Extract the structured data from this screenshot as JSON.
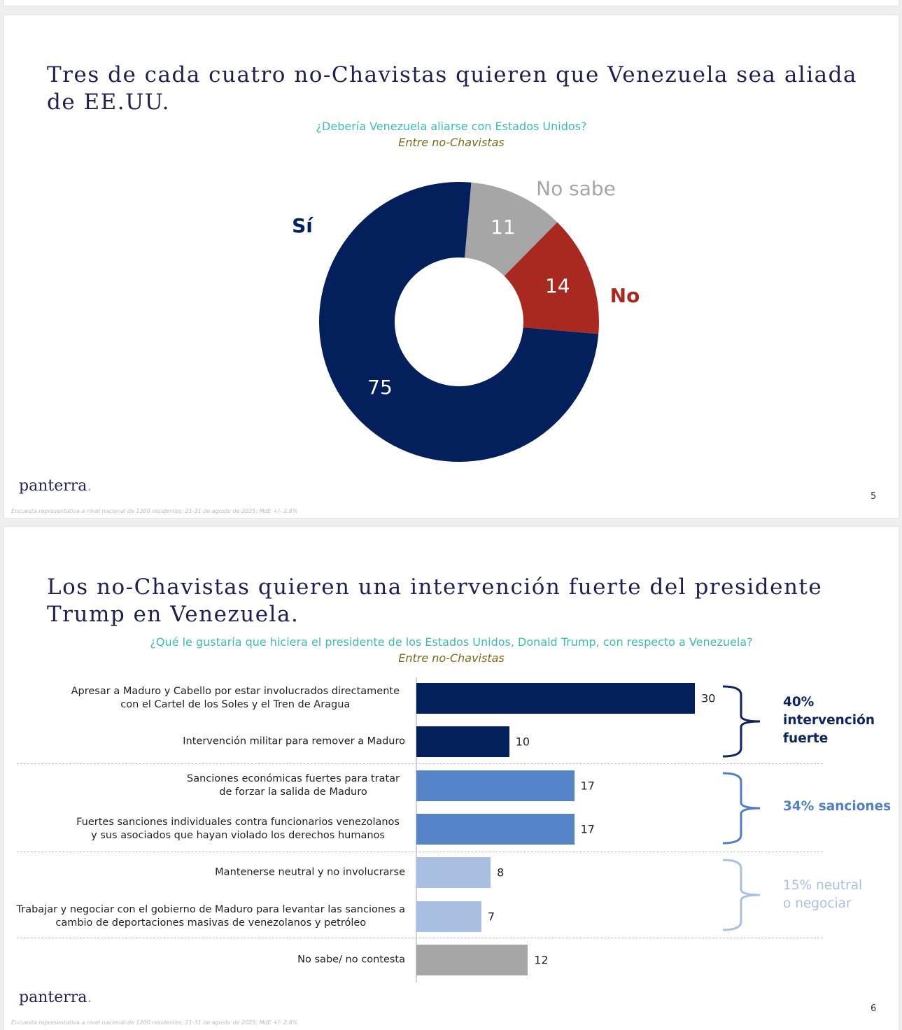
{
  "footer": "Encuesta representativa a nivel nacional de 1200 residentes; 21-31 de agosto de 2025; MdE +/- 2.8%",
  "logo": "panterra",
  "slides": [
    {
      "title": "Tres de cada cuatro no-Chavistas quieren que Venezuela sea aliada de EE.UU.",
      "question": "¿Debería Venezuela aliarse con Estados Unidos?",
      "subtitle": "Entre no-Chavistas",
      "page": "5"
    },
    {
      "title": "Los no-Chavistas quieren una intervención fuerte del presidente Trump en Venezuela.",
      "question": "¿Qué le gustaría que hiciera el presidente de los Estados Unidos, Donald Trump, con respecto a Venezuela?",
      "subtitle": "Entre no-Chavistas",
      "page": "6",
      "groups": [
        {
          "label": "40% intervención fuerte",
          "color": "#0d2560"
        },
        {
          "label": "34% sanciones",
          "color": "#4f7fc6"
        },
        {
          "label": "15% neutral o negociar",
          "color": "#a8c0e4"
        }
      ]
    }
  ],
  "chart_data": [
    {
      "type": "pie",
      "donut": true,
      "categories": [
        "No sabe",
        "No",
        "Sí"
      ],
      "values": [
        11,
        14,
        75
      ],
      "colors": [
        "#a6a6a6",
        "#a8291f",
        "#03205c"
      ]
    },
    {
      "type": "bar",
      "orientation": "horizontal",
      "categories": [
        "Apresar a Maduro y Cabello por estar involucrados directamente\ncon el Cartel de los Soles y el Tren de Aragua",
        "Intervención militar para remover a Maduro",
        "Sanciones económicas fuertes para tratar\nde forzar la salida de Maduro",
        "Fuertes sanciones individuales contra funcionarios venezolanos\ny sus asociados que hayan violado los derechos humanos",
        "Mantenerse neutral y no involucrarse",
        "Trabajar y negociar con el gobierno de Maduro para levantar las sanciones a\ncambio de deportaciones masivas de venezolanos y petróleo",
        "No sabe/ no contesta"
      ],
      "values": [
        30,
        10,
        17,
        17,
        8,
        7,
        12
      ],
      "colors": [
        "#03205c",
        "#03205c",
        "#5585c8",
        "#5585c8",
        "#a9bfe2",
        "#a9bfe2",
        "#a6a6a6"
      ]
    }
  ]
}
